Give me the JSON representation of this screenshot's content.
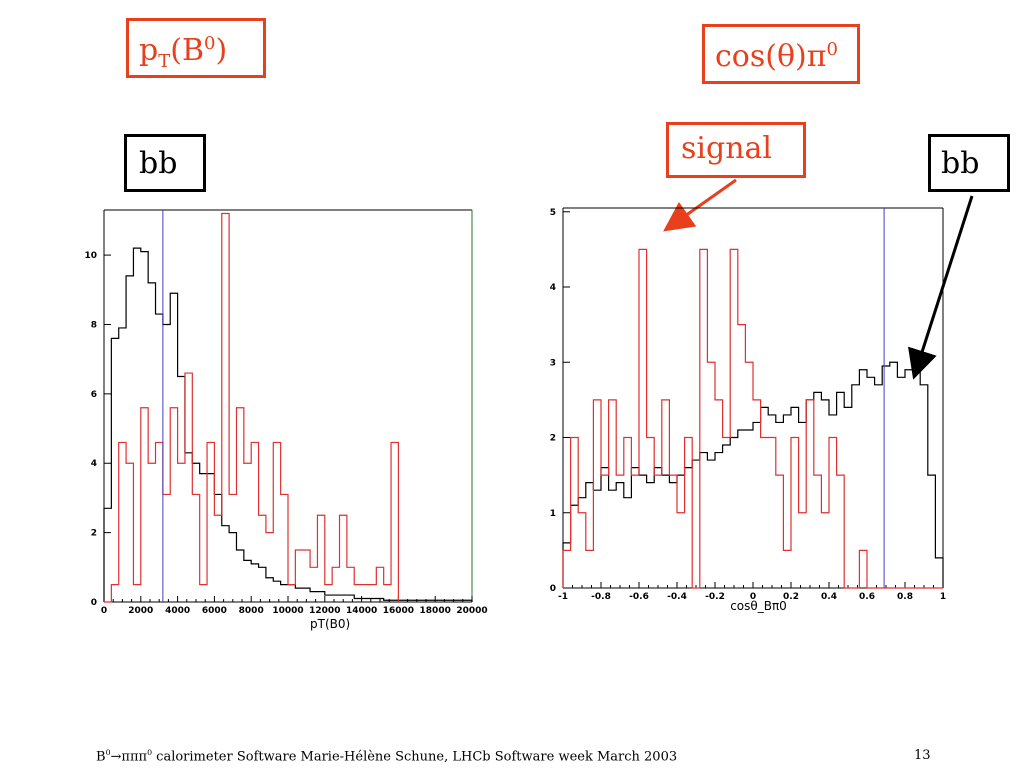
{
  "labels": {
    "left_title_main": "p",
    "left_title_sub": "T",
    "left_title_mid": "(B",
    "left_title_sup": "0",
    "left_title_end": ")",
    "right_title_main": "cos(θ)π",
    "right_title_sup": "0",
    "bb_left": "bb",
    "signal": "signal",
    "bb_right": "bb"
  },
  "footer": {
    "pre": "B",
    "sup1": "0",
    "arrow": "→πππ",
    "sup2": "0",
    "rest": " calorimeter Software Marie-Hélène Schune, LHCb Software week March 2003",
    "page": "13"
  },
  "colors": {
    "accent_red": "#e8401c",
    "signal": "#e03030",
    "background": "#000000",
    "cut": "#4040c0"
  },
  "chart_data": [
    {
      "type": "histogram",
      "xlabel": "pT(B0)",
      "xlim": [
        0,
        20000
      ],
      "ylim": [
        0,
        11.3
      ],
      "xticks": [
        0,
        2000,
        4000,
        6000,
        8000,
        10000,
        12000,
        14000,
        16000,
        18000,
        20000
      ],
      "xtick_labels": [
        "0",
        "2000",
        "4000",
        "6000",
        "8000",
        "10000",
        "12000",
        "14000",
        "16000",
        "18000",
        "20000"
      ],
      "yticks": [
        0,
        2,
        4,
        6,
        8,
        10
      ],
      "ytick_labels": [
        "0",
        "2",
        "4",
        "6",
        "8",
        "10"
      ],
      "bin_width": 400,
      "cut": 3200,
      "series": [
        {
          "values": [
            2.7,
            7.6,
            7.9,
            9.4,
            10.2,
            10.1,
            9.2,
            8.3,
            8.0,
            8.9,
            6.5,
            4.3,
            4.0,
            3.7,
            3.7,
            3.1,
            2.2,
            2.0,
            1.5,
            1.2,
            1.1,
            1.0,
            0.7,
            0.6,
            0.5,
            0.5,
            0.4,
            0.4,
            0.3,
            0.3,
            0.2,
            0.2,
            0.2,
            0.2,
            0.1,
            0.1,
            0.1,
            0.1,
            0.05,
            0.05,
            0.05,
            0.05,
            0.05,
            0.05,
            0.05,
            0.05,
            0.05,
            0.05,
            0.05,
            0.05
          ]
        },
        {
          "values": [
            0,
            0.5,
            4.6,
            4.0,
            0.5,
            5.6,
            4.0,
            4.6,
            3.1,
            5.6,
            4.0,
            6.6,
            3.1,
            0.5,
            4.6,
            2.5,
            11.2,
            3.1,
            5.6,
            4.0,
            4.6,
            2.5,
            2.0,
            4.6,
            3.1,
            0.5,
            1.5,
            1.5,
            1.0,
            2.5,
            0.5,
            1.0,
            2.5,
            1.0,
            0.5,
            0.5,
            0.5,
            1.0,
            0.5,
            4.6
          ]
        }
      ]
    },
    {
      "type": "histogram",
      "xlabel": "cosθ_Bπ0",
      "xlim": [
        -1,
        1
      ],
      "ylim": [
        0,
        5.05
      ],
      "xticks": [
        -1,
        -0.8,
        -0.6,
        -0.4,
        -0.2,
        0,
        0.2,
        0.4,
        0.6,
        0.8,
        1
      ],
      "xtick_labels": [
        "-1",
        "-0.8",
        "-0.6",
        "-0.4",
        "-0.2",
        "0",
        "0.2",
        "0.4",
        "0.6",
        "0.8",
        "1"
      ],
      "yticks": [
        0,
        1,
        2,
        3,
        4,
        5
      ],
      "ytick_labels": [
        "0",
        "1",
        "2",
        "3",
        "4",
        "5"
      ],
      "bin_width": 0.04,
      "cut": 0.69,
      "series": [
        {
          "values": [
            0.6,
            1.1,
            1.2,
            1.4,
            1.3,
            1.6,
            1.3,
            1.4,
            1.2,
            1.6,
            1.5,
            1.4,
            1.6,
            1.5,
            1.4,
            1.5,
            1.6,
            1.7,
            1.8,
            1.7,
            1.8,
            1.9,
            2.0,
            2.1,
            2.1,
            2.2,
            2.4,
            2.3,
            2.2,
            2.3,
            2.4,
            2.2,
            2.5,
            2.6,
            2.5,
            2.3,
            2.6,
            2.4,
            2.7,
            2.9,
            2.8,
            2.7,
            2.95,
            3.0,
            2.8,
            2.9,
            3.0,
            2.7,
            1.5,
            0.4
          ]
        },
        {
          "values": [
            0.5,
            2.0,
            1.0,
            0.5,
            2.5,
            1.5,
            2.5,
            1.5,
            2.0,
            1.5,
            4.5,
            2.0,
            1.5,
            2.5,
            1.5,
            1.0,
            2.0,
            0.0,
            4.5,
            3.0,
            2.5,
            2.0,
            4.5,
            3.5,
            3.0,
            2.5,
            2.0,
            2.0,
            1.5,
            0.5,
            2.0,
            1.0,
            2.5,
            1.5,
            1.0,
            2.0,
            1.5,
            0.0,
            0.0,
            0.5,
            0.0,
            0.0,
            0.0,
            0.0,
            0.0,
            0.0,
            0.0,
            0.0,
            0.0,
            0.0
          ]
        }
      ]
    }
  ]
}
